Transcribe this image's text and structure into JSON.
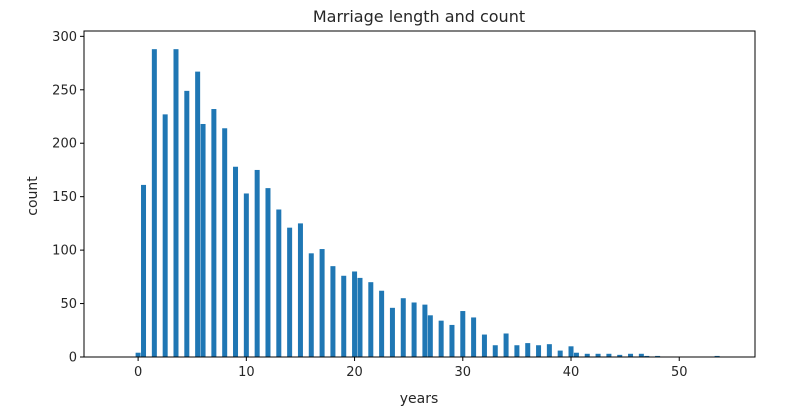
{
  "chart_data": {
    "type": "bar",
    "title": "Marriage length and count",
    "xlabel": "years",
    "ylabel": "count",
    "xlim": [
      -5,
      57
    ],
    "ylim": [
      0,
      305
    ],
    "xticks": [
      "0",
      "10",
      "20",
      "30",
      "40",
      "50"
    ],
    "yticks": [
      "0",
      "50",
      "100",
      "150",
      "200",
      "250",
      "300"
    ],
    "grid": false,
    "legend": "none",
    "bar_color": "#1f77b4",
    "x": [
      0,
      0.5,
      1.5,
      2.5,
      3.5,
      4.5,
      5.5,
      6,
      7,
      8,
      9,
      10,
      11,
      12,
      13,
      14,
      15,
      16,
      17,
      18,
      19,
      20,
      20.5,
      21.5,
      22.5,
      23.5,
      24.5,
      25.5,
      26.5,
      27,
      28,
      29,
      30,
      31,
      32,
      33,
      34,
      35,
      36,
      37,
      38,
      39,
      40,
      40.5,
      41.5,
      42.5,
      43.5,
      44.5,
      45.5,
      46.5,
      47,
      48,
      53.5
    ],
    "values": [
      4,
      161,
      288,
      227,
      288,
      249,
      267,
      218,
      232,
      214,
      178,
      153,
      175,
      158,
      138,
      121,
      125,
      97,
      101,
      85,
      76,
      80,
      74,
      70,
      62,
      46,
      55,
      51,
      49,
      39,
      34,
      30,
      43,
      37,
      21,
      11,
      22,
      11,
      13,
      11,
      12,
      6,
      10,
      4,
      3,
      3,
      3,
      2,
      3,
      3,
      1,
      1,
      1
    ]
  }
}
